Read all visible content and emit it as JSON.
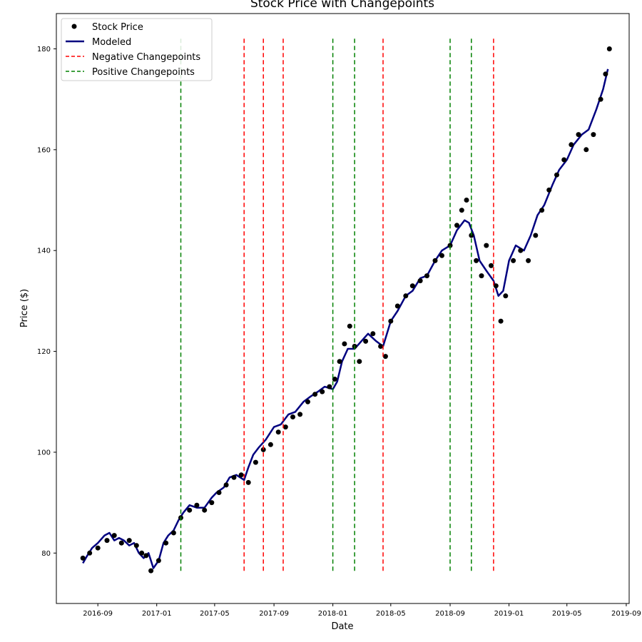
{
  "chart_data": {
    "type": "line",
    "title": "Stock Price with Changepoints",
    "xlabel": "Date",
    "ylabel": "Price ($)",
    "xlim": [
      "2016-06-07",
      "2019-09-07"
    ],
    "ylim": [
      70,
      187
    ],
    "x_ticks": [
      "2016-09",
      "2017-01",
      "2017-05",
      "2017-09",
      "2018-01",
      "2018-05",
      "2018-09",
      "2019-01",
      "2019-05",
      "2019-09"
    ],
    "y_ticks": [
      80,
      100,
      120,
      140,
      160,
      180
    ],
    "grid": false,
    "legend": {
      "position": "top-left",
      "entries": [
        {
          "label": "Stock Price",
          "marker": "dot",
          "color": "#000000"
        },
        {
          "label": "Modeled",
          "marker": "line",
          "color": "#000080"
        },
        {
          "label": "Negative Changepoints",
          "marker": "dashed",
          "color": "#ff0000"
        },
        {
          "label": "Positive Changepoints",
          "marker": "dashed",
          "color": "#008000"
        }
      ]
    },
    "changepoint_range": [
      76,
      182
    ],
    "changepoints": {
      "negative": [
        "2017-07-01",
        "2017-08-10",
        "2017-09-20",
        "2018-04-15",
        "2018-11-30"
      ],
      "positive": [
        "2017-02-20",
        "2018-01-01",
        "2018-02-15",
        "2018-09-01",
        "2018-10-15"
      ]
    },
    "modeled": {
      "x": [
        "2016-08-01",
        "2016-08-10",
        "2016-08-20",
        "2016-09-01",
        "2016-09-15",
        "2016-09-25",
        "2016-10-05",
        "2016-10-15",
        "2016-10-25",
        "2016-11-05",
        "2016-11-15",
        "2016-11-25",
        "2016-12-05",
        "2016-12-15",
        "2016-12-25",
        "2017-01-05",
        "2017-01-15",
        "2017-01-25",
        "2017-02-05",
        "2017-02-15",
        "2017-02-25",
        "2017-03-10",
        "2017-03-25",
        "2017-04-10",
        "2017-04-25",
        "2017-05-05",
        "2017-05-20",
        "2017-06-01",
        "2017-06-15",
        "2017-07-01",
        "2017-07-10",
        "2017-07-20",
        "2017-08-01",
        "2017-08-15",
        "2017-09-01",
        "2017-09-15",
        "2017-10-01",
        "2017-10-15",
        "2017-11-01",
        "2017-11-15",
        "2017-12-01",
        "2017-12-15",
        "2018-01-01",
        "2018-01-10",
        "2018-01-20",
        "2018-02-01",
        "2018-02-15",
        "2018-03-01",
        "2018-03-15",
        "2018-04-01",
        "2018-04-15",
        "2018-05-01",
        "2018-05-15",
        "2018-06-01",
        "2018-06-15",
        "2018-07-01",
        "2018-07-15",
        "2018-08-01",
        "2018-08-15",
        "2018-09-01",
        "2018-09-15",
        "2018-10-01",
        "2018-10-10",
        "2018-10-20",
        "2018-11-01",
        "2018-11-15",
        "2018-11-30",
        "2018-12-10",
        "2018-12-20",
        "2019-01-01",
        "2019-01-15",
        "2019-02-01",
        "2019-02-15",
        "2019-03-01",
        "2019-03-15",
        "2019-04-01",
        "2019-04-15",
        "2019-05-01",
        "2019-05-15",
        "2019-06-01",
        "2019-06-15",
        "2019-07-01",
        "2019-07-15",
        "2019-07-25"
      ],
      "y": [
        78,
        79.5,
        81,
        82,
        83.5,
        84,
        82.5,
        83,
        82.5,
        81.5,
        82,
        80,
        79,
        80,
        77,
        78.5,
        82,
        83.5,
        84.5,
        86.5,
        88,
        89.5,
        89,
        89,
        91,
        92,
        93,
        95,
        95.5,
        94.5,
        97,
        99.5,
        101,
        102.5,
        105,
        105.5,
        107.5,
        108,
        110,
        111,
        112,
        113,
        112.5,
        114,
        118,
        120.5,
        120.5,
        122,
        123.5,
        122,
        121,
        126,
        128,
        131,
        132,
        134.5,
        135,
        138,
        140,
        141,
        144,
        146,
        145.5,
        143,
        138,
        136,
        134,
        131,
        132,
        138,
        141,
        140,
        143,
        147,
        149,
        153,
        156,
        158,
        161,
        163,
        164,
        168,
        172,
        176
      ]
    },
    "stock_price": {
      "x": [
        "2016-08-01",
        "2016-08-15",
        "2016-09-01",
        "2016-09-20",
        "2016-10-05",
        "2016-10-20",
        "2016-11-05",
        "2016-11-20",
        "2016-12-01",
        "2016-12-10",
        "2016-12-20",
        "2017-01-05",
        "2017-01-20",
        "2017-02-05",
        "2017-02-20",
        "2017-03-10",
        "2017-03-25",
        "2017-04-10",
        "2017-04-25",
        "2017-05-10",
        "2017-05-25",
        "2017-06-10",
        "2017-06-25",
        "2017-07-10",
        "2017-07-25",
        "2017-08-10",
        "2017-08-25",
        "2017-09-10",
        "2017-09-25",
        "2017-10-10",
        "2017-10-25",
        "2017-11-10",
        "2017-11-25",
        "2017-12-10",
        "2017-12-25",
        "2018-01-05",
        "2018-01-15",
        "2018-01-25",
        "2018-02-05",
        "2018-02-15",
        "2018-02-25",
        "2018-03-10",
        "2018-03-25",
        "2018-04-10",
        "2018-04-20",
        "2018-05-01",
        "2018-05-15",
        "2018-06-01",
        "2018-06-15",
        "2018-07-01",
        "2018-07-15",
        "2018-08-01",
        "2018-08-15",
        "2018-09-01",
        "2018-09-15",
        "2018-09-25",
        "2018-10-05",
        "2018-10-15",
        "2018-10-25",
        "2018-11-05",
        "2018-11-15",
        "2018-11-25",
        "2018-12-05",
        "2018-12-15",
        "2018-12-25",
        "2019-01-10",
        "2019-01-25",
        "2019-02-10",
        "2019-02-25",
        "2019-03-10",
        "2019-03-25",
        "2019-04-10",
        "2019-04-25",
        "2019-05-10",
        "2019-05-25",
        "2019-06-10",
        "2019-06-25",
        "2019-07-10",
        "2019-07-20",
        "2019-07-28"
      ],
      "y": [
        79,
        80,
        81,
        82.5,
        83.5,
        82,
        82.5,
        81.5,
        80,
        79.5,
        76.5,
        78.5,
        82,
        84,
        87,
        88.5,
        89.5,
        88.5,
        90,
        92,
        93.5,
        95,
        95.5,
        94,
        98,
        100.5,
        101.5,
        104,
        105,
        107,
        107.5,
        110,
        111.5,
        112,
        113,
        114.5,
        118,
        121.5,
        125,
        121,
        118,
        122,
        123.5,
        121,
        119,
        126,
        129,
        131,
        133,
        134,
        135,
        138,
        139,
        141,
        145,
        148,
        150,
        143,
        138,
        135,
        141,
        137,
        133,
        126,
        131,
        138,
        140,
        138,
        143,
        148,
        152,
        155,
        158,
        161,
        163,
        160,
        163,
        170,
        175,
        180
      ]
    }
  }
}
